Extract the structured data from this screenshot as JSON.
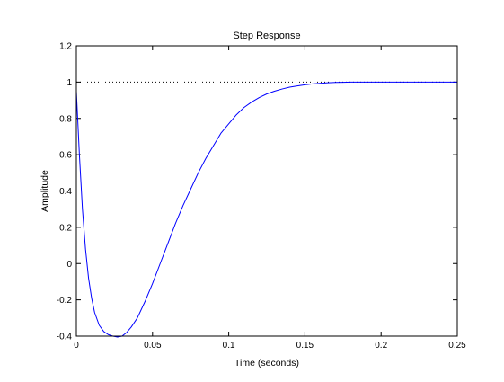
{
  "chart_data": {
    "type": "line",
    "title": "Step Response",
    "xlabel": "Time (seconds)",
    "ylabel": "Amplitude",
    "xlim": [
      0,
      0.25
    ],
    "ylim": [
      -0.4,
      1.2
    ],
    "xticks": [
      0,
      0.05,
      0.1,
      0.15,
      0.2,
      0.25
    ],
    "xtick_labels": [
      "0",
      "0.05",
      "0.1",
      "0.15",
      "0.2",
      "0.25"
    ],
    "yticks": [
      -0.4,
      -0.2,
      0,
      0.2,
      0.4,
      0.6,
      0.8,
      1,
      1.2
    ],
    "ytick_labels": [
      "-0.4",
      "-0.2",
      "0",
      "0.2",
      "0.4",
      "0.6",
      "0.8",
      "1",
      "1.2"
    ],
    "grid": false,
    "legend": false,
    "reference_line": {
      "y": 1,
      "style": "dotted",
      "color": "#000000"
    },
    "series": [
      {
        "color": "#0000ff",
        "x": [
          0,
          0.002,
          0.004,
          0.006,
          0.008,
          0.01,
          0.012,
          0.015,
          0.018,
          0.021,
          0.024,
          0.027,
          0.03,
          0.033,
          0.036,
          0.04,
          0.045,
          0.05,
          0.055,
          0.06,
          0.065,
          0.07,
          0.075,
          0.08,
          0.085,
          0.09,
          0.095,
          0.1,
          0.105,
          0.11,
          0.115,
          0.12,
          0.125,
          0.13,
          0.135,
          0.14,
          0.145,
          0.15,
          0.155,
          0.16,
          0.165,
          0.17,
          0.175,
          0.18,
          0.185,
          0.19,
          0.2,
          0.21,
          0.22,
          0.23,
          0.24,
          0.25
        ],
        "y": [
          0.95,
          0.6,
          0.3,
          0.08,
          -0.08,
          -0.19,
          -0.27,
          -0.34,
          -0.375,
          -0.392,
          -0.4,
          -0.405,
          -0.4,
          -0.38,
          -0.35,
          -0.3,
          -0.21,
          -0.11,
          0.0,
          0.11,
          0.22,
          0.32,
          0.41,
          0.5,
          0.58,
          0.65,
          0.72,
          0.77,
          0.82,
          0.86,
          0.89,
          0.915,
          0.935,
          0.95,
          0.962,
          0.972,
          0.979,
          0.985,
          0.99,
          0.993,
          0.996,
          0.998,
          0.999,
          1.0,
          1.0,
          1.0,
          1.0,
          1.0,
          1.0,
          1.0,
          1.0,
          1.0
        ]
      }
    ]
  }
}
